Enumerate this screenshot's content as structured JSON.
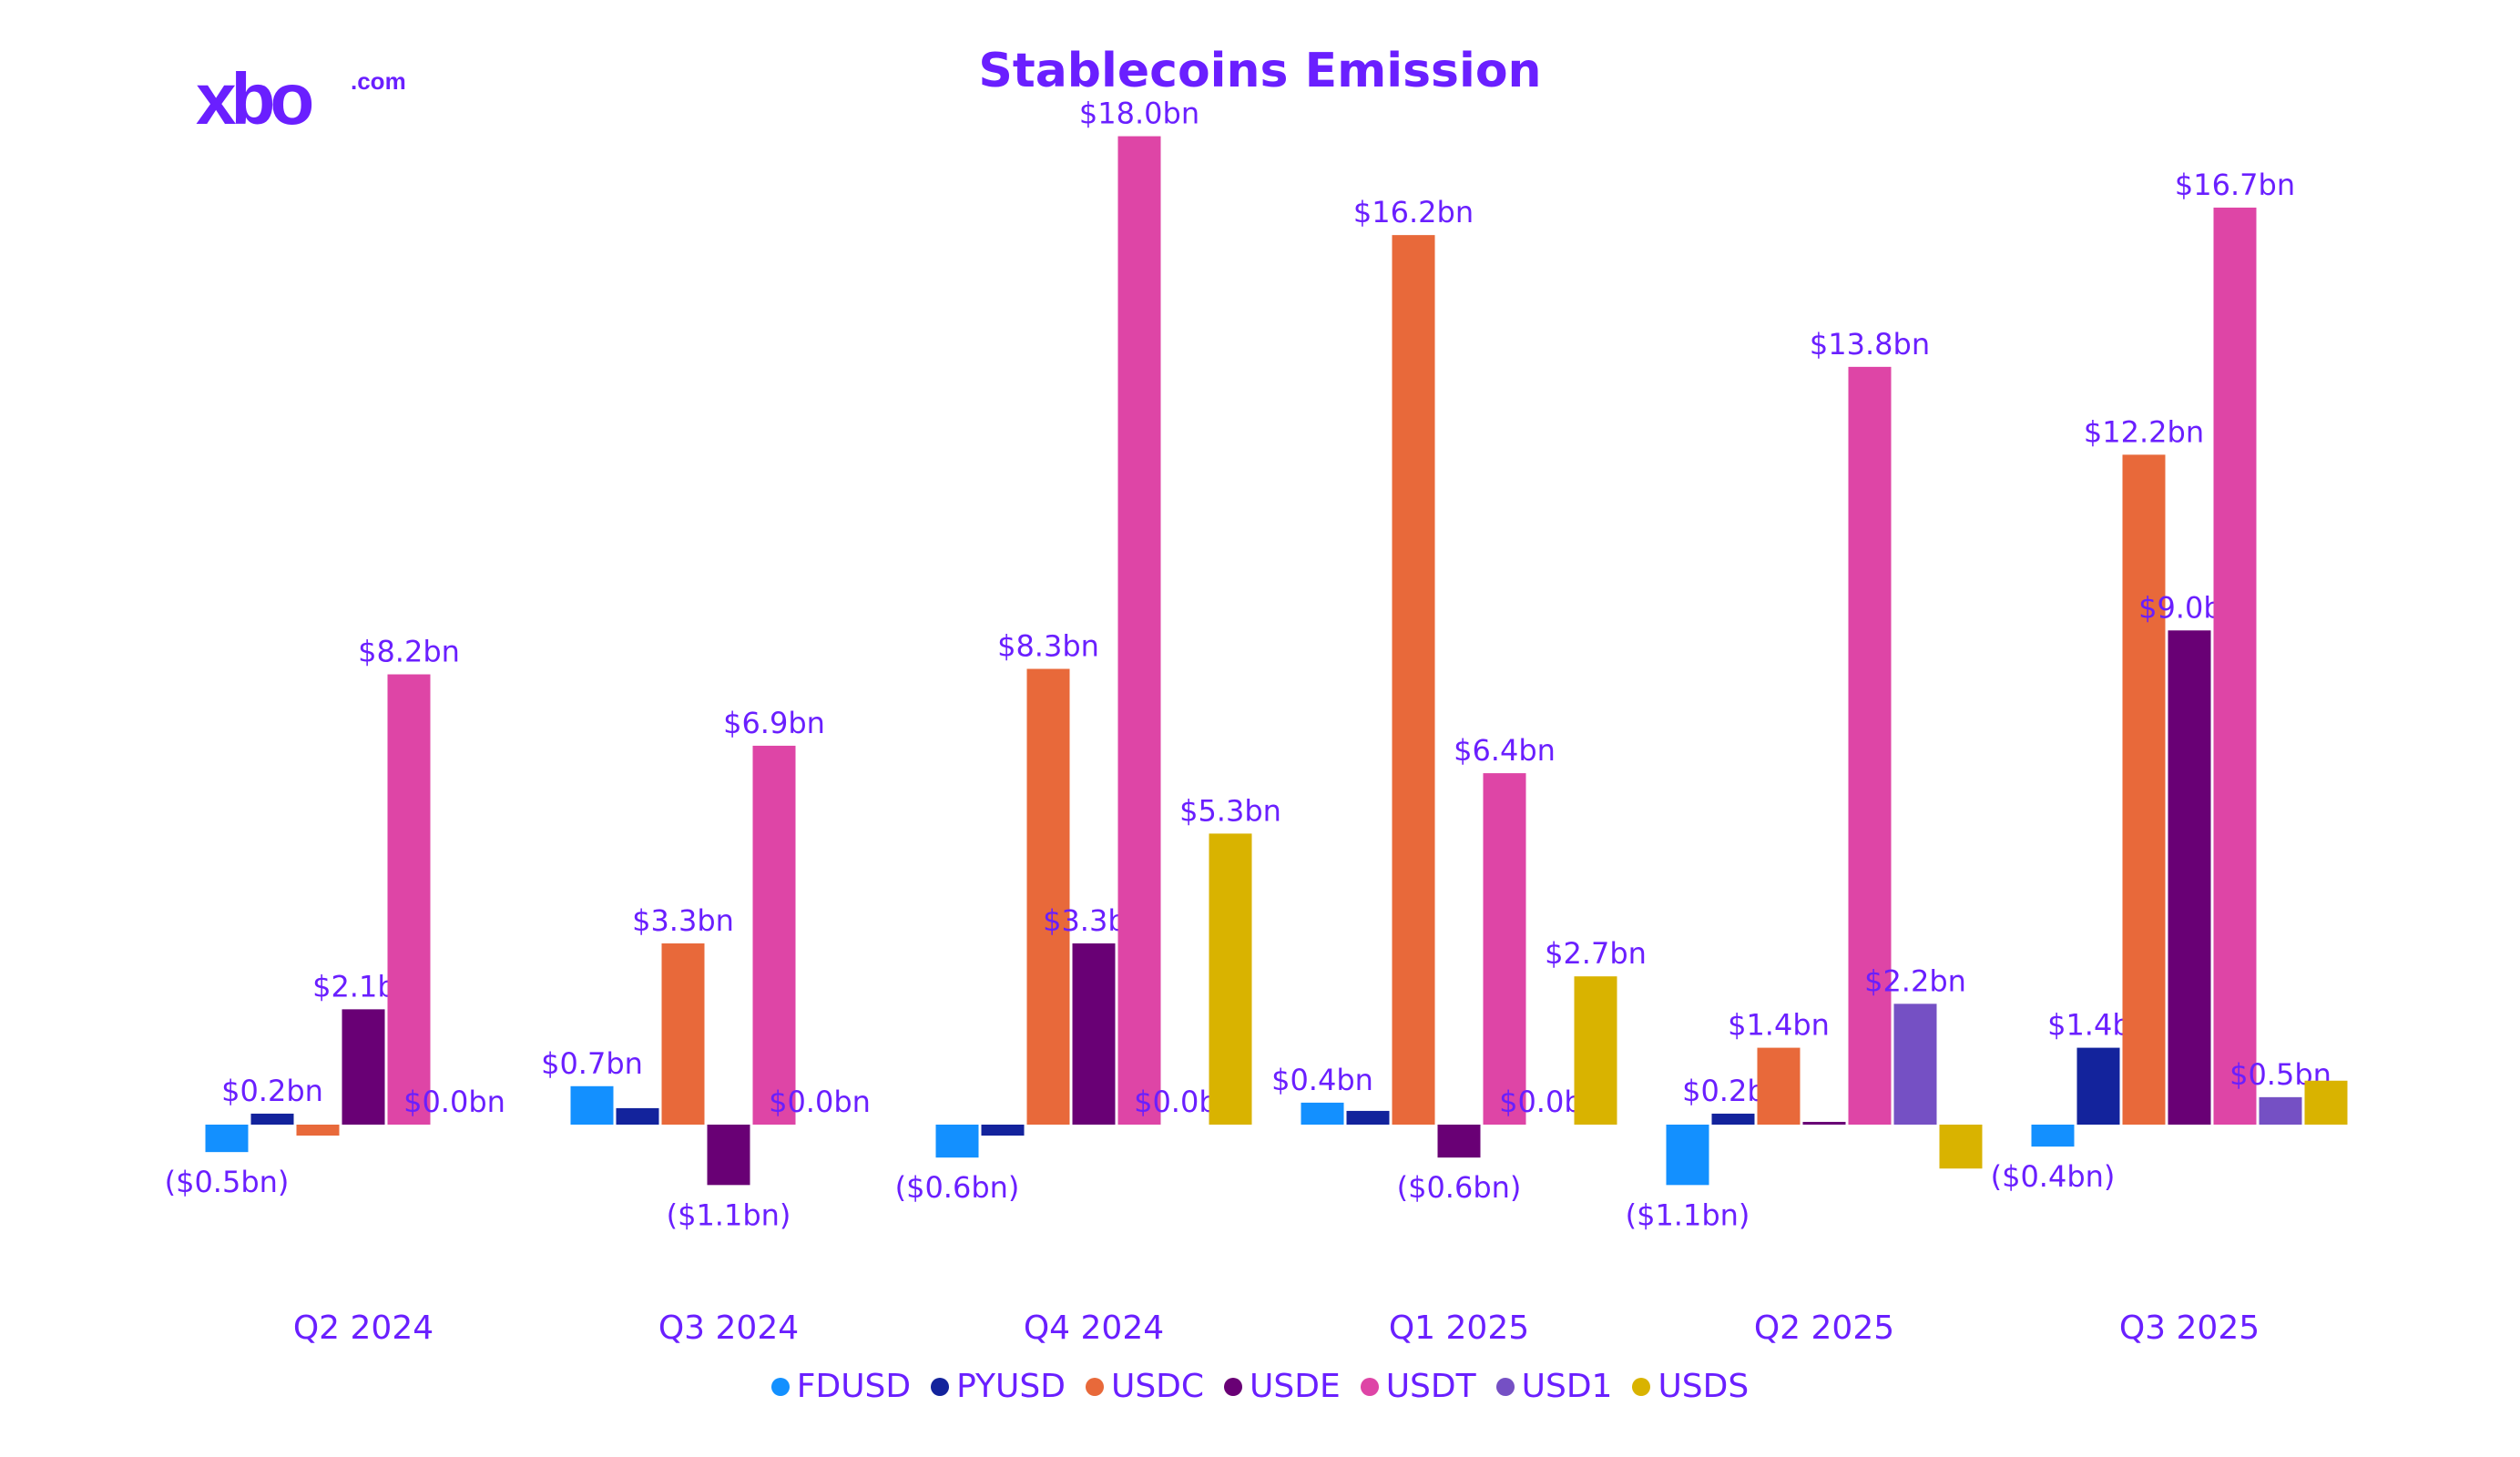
{
  "logo": {
    "text": "xbo",
    "suffix": ".com"
  },
  "chart_data": {
    "type": "bar",
    "title": "Stablecoins Emission",
    "xlabel": "",
    "ylabel": "",
    "unit": "$bn",
    "grid": false,
    "legend_position": "bottom",
    "categories": [
      "Q2 2024",
      "Q3 2024",
      "Q4 2024",
      "Q1 2025",
      "Q2 2025",
      "Q3 2025"
    ],
    "series": [
      {
        "name": "FDUSD",
        "color": "#1390ff",
        "values": [
          -0.5,
          0.7,
          -0.6,
          0.4,
          -1.1,
          -0.4
        ],
        "labels": [
          "($0.5bn)",
          "$0.7bn",
          "($0.6bn)",
          "$0.4bn",
          "($1.1bn)",
          "($0.4bn)"
        ]
      },
      {
        "name": "PYUSD",
        "color": "#13239c",
        "values": [
          0.2,
          0.3,
          -0.2,
          0.25,
          0.2,
          1.4
        ],
        "labels": [
          "$0.2bn",
          null,
          null,
          null,
          "$0.2bn",
          "$1.4bn"
        ]
      },
      {
        "name": "USDC",
        "color": "#e8693a",
        "values": [
          -0.2,
          3.3,
          8.3,
          16.2,
          1.4,
          12.2
        ],
        "labels": [
          null,
          "$3.3bn",
          "$8.3bn",
          "$16.2bn",
          "$1.4bn",
          "$12.2bn"
        ]
      },
      {
        "name": "USDE",
        "color": "#690075",
        "values": [
          2.1,
          -1.1,
          3.3,
          -0.6,
          0.05,
          9.0
        ],
        "labels": [
          "$2.1bn",
          "($1.1bn)",
          "$3.3bn",
          "($0.6bn)",
          null,
          "$9.0bn"
        ]
      },
      {
        "name": "USDT",
        "color": "#de45a6",
        "values": [
          8.2,
          6.9,
          18.0,
          6.4,
          13.8,
          16.7
        ],
        "labels": [
          "$8.2bn",
          "$6.9bn",
          "$18.0bn",
          "$6.4bn",
          "$13.8bn",
          "$16.7bn"
        ]
      },
      {
        "name": "USD1",
        "color": "#7550c4",
        "values": [
          0,
          0,
          0,
          0,
          2.2,
          0.5
        ],
        "labels": [
          "$0.0bn",
          "$0.0bn",
          "$0.0bn",
          "$0.0bn",
          "$2.2bn",
          "$0.5bn"
        ]
      },
      {
        "name": "USDS",
        "color": "#d9b300",
        "values": [
          0,
          0,
          5.3,
          2.7,
          -0.8,
          0.8
        ],
        "labels": [
          null,
          null,
          "$5.3bn",
          "$2.7bn",
          null,
          null
        ]
      }
    ]
  }
}
